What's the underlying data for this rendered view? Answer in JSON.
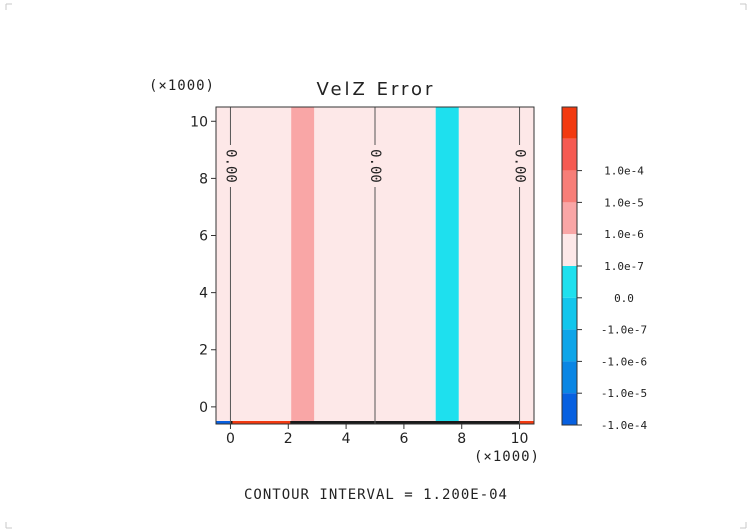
{
  "chart_data": {
    "type": "heatmap",
    "title": "VelZ Error",
    "x_multiplier_label": "(×1000)",
    "y_multiplier_label": "(×1000)",
    "xlabel": "",
    "ylabel": "",
    "xlim": [
      -0.5,
      10.5
    ],
    "ylim": [
      -0.6,
      10.5
    ],
    "x_ticks": [
      0,
      2,
      4,
      6,
      8,
      10
    ],
    "y_ticks": [
      0,
      2,
      4,
      6,
      8,
      10
    ],
    "x_tick_labels": [
      "0",
      "2",
      "4",
      "6",
      "8",
      "10"
    ],
    "y_tick_labels": [
      "0",
      "2",
      "4",
      "6",
      "8",
      "10"
    ],
    "bands": [
      {
        "x_start": -0.5,
        "x_end": 2.1,
        "level": "0.0",
        "color": "#fde8e8"
      },
      {
        "x_start": 2.1,
        "x_end": 2.9,
        "level": "1.0e-6",
        "color": "#f9a6a6"
      },
      {
        "x_start": 2.9,
        "x_end": 7.1,
        "level": "0.0",
        "color": "#fde8e8"
      },
      {
        "x_start": 7.1,
        "x_end": 7.9,
        "level": "-1.0e-7",
        "color": "#1ee0ee"
      },
      {
        "x_start": 7.9,
        "x_end": 10.5,
        "level": "0.0",
        "color": "#fde8e8"
      }
    ],
    "contour_lines": [
      {
        "x": 0,
        "label": "0.00"
      },
      {
        "x": 5,
        "label": "0.00"
      },
      {
        "x": 10,
        "label": "0.00"
      }
    ],
    "colorbar": {
      "levels": [
        {
          "label": "",
          "color": "#f23a10"
        },
        {
          "label": "1.0e-4",
          "color": "#f55a52"
        },
        {
          "label": "1.0e-5",
          "color": "#f77e78"
        },
        {
          "label": "1.0e-6",
          "color": "#f9a6a6"
        },
        {
          "label": "1.0e-7",
          "color": "#fde8e8"
        },
        {
          "label": "0.0",
          "color": "#1ee0ee"
        },
        {
          "label": "-1.0e-7",
          "color": "#12c6ec"
        },
        {
          "label": "-1.0e-6",
          "color": "#0ea5e8"
        },
        {
          "label": "-1.0e-5",
          "color": "#0a86e4"
        },
        {
          "label": "-1.0e-4",
          "color": "#0760e0"
        }
      ]
    },
    "footer": "CONTOUR INTERVAL = 1.200E-04"
  }
}
